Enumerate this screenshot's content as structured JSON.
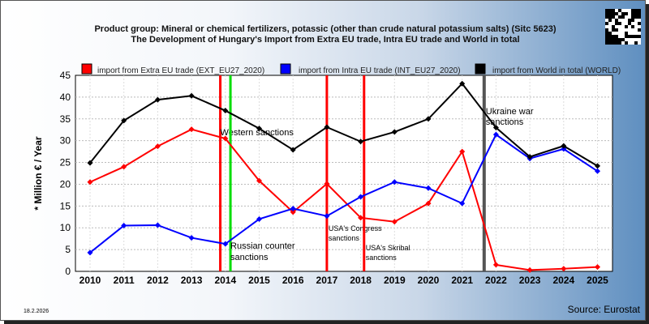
{
  "chart_data": {
    "type": "line",
    "title": "Product group: Mineral or chemical fertilizers, potassic (other than crude natural potassium salts) (Sitc 5623)",
    "subtitle": "The Development of Hungary's Import from Extra EU trade, Intra EU trade and World in total",
    "ylabel": "* Million € / Year",
    "xlabel": "",
    "ylim": [
      0,
      45
    ],
    "yticks": [
      0,
      5,
      10,
      15,
      20,
      25,
      30,
      35,
      40,
      45
    ],
    "grid": true,
    "legend_position": "top",
    "x": [
      "2010",
      "2011",
      "2012",
      "2013",
      "2014",
      "2015",
      "2016",
      "2017",
      "2018",
      "2019",
      "2020",
      "2021",
      "2022",
      "2023",
      "2024",
      "2025"
    ],
    "series": [
      {
        "name": "import from Extra EU trade (EXT_EU27_2020)",
        "color": "#ff0000",
        "values": [
          20.5,
          24.0,
          28.7,
          32.6,
          30.5,
          20.8,
          13.6,
          20.1,
          12.3,
          11.4,
          15.6,
          27.5,
          1.5,
          0.3,
          0.6,
          1.0
        ]
      },
      {
        "name": "import from Intra EU trade (INT_EU27_2020)",
        "color": "#0000ff",
        "values": [
          4.3,
          10.5,
          10.6,
          7.7,
          6.3,
          12.0,
          14.4,
          12.7,
          17.1,
          20.5,
          19.1,
          15.6,
          31.4,
          25.9,
          28.1,
          23.0
        ]
      },
      {
        "name": "import from World in total (WORLD)",
        "color": "#000000",
        "values": [
          24.9,
          34.6,
          39.4,
          40.3,
          36.9,
          32.8,
          27.9,
          33.1,
          29.8,
          32.0,
          35.0,
          43.1,
          33.0,
          26.3,
          28.8,
          24.2
        ]
      }
    ],
    "events": [
      {
        "label": "Western sanctions",
        "x": 2013.85,
        "color": "#ff0000"
      },
      {
        "label": "Russian counter sanctions",
        "x": 2014.15,
        "color": "#00dd00"
      },
      {
        "label": "USA's Congress sanctions",
        "x": 2017.0,
        "color": "#ff0000"
      },
      {
        "label": "USA's Skribal sanctions",
        "x": 2018.1,
        "color": "#ff0000"
      },
      {
        "label": "Ukraine war sanctions",
        "x": 2021.65,
        "color": "#555555"
      }
    ]
  },
  "footer": {
    "date": "18.2.2026",
    "source": "Source: Eurostat"
  }
}
